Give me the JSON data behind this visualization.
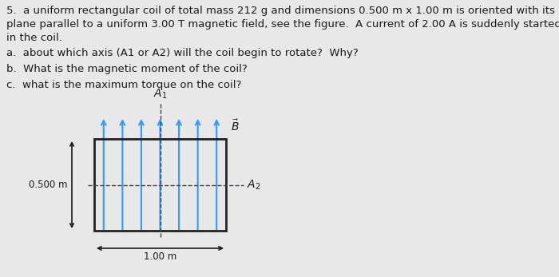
{
  "bg_color": "#e8e8e8",
  "text_color": "#1a1a1a",
  "problem_text_line1": "5.  a uniform rectangular coil of total mass 212 g and dimensions 0.500 m x 1.00 m is oriented with its",
  "problem_text_line2": "plane parallel to a uniform 3.00 T magnetic field, see the figure.  A current of 2.00 A is suddenly started",
  "problem_text_line3": "in the coil.",
  "question_a": "a.  about which axis (A1 or A2) will the coil begin to rotate?  Why?",
  "question_b": "b.  What is the magnetic moment of the coil?",
  "question_c": "c.  what is the maximum torque on the coil?",
  "arrow_color": "#3399ff",
  "rect_color": "#222222",
  "dashed_color": "#444444",
  "num_field_lines": 7,
  "dim_label_x": "1.00 m",
  "dim_label_y": "0.500 m"
}
